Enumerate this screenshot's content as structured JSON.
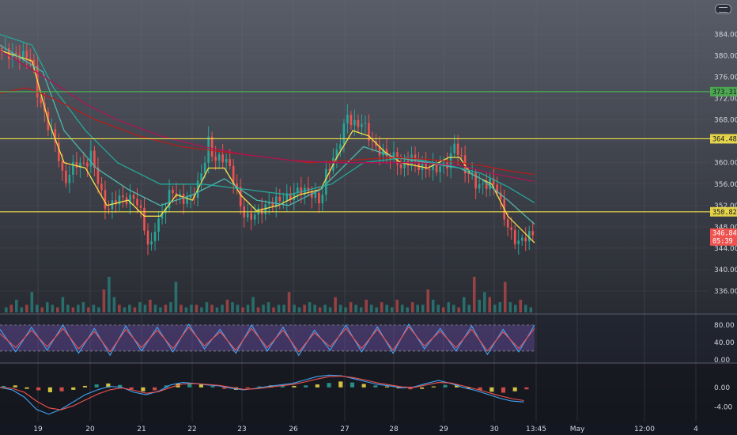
{
  "chart_data": [
    {
      "type": "candlestick",
      "panel": "price",
      "ylim": [
        332,
        386
      ],
      "y_ticks": [
        336,
        340,
        344,
        348,
        352,
        356,
        360,
        364,
        368,
        372,
        376,
        380,
        384
      ],
      "y_tick_labels": [
        "336.00",
        "340.00",
        "344.00",
        "348.00",
        "352.00",
        "356.00",
        "360.00",
        "364.00",
        "368.00",
        "372.00",
        "376.00",
        "380.00",
        "384.00"
      ],
      "x_tick_labels": [
        "19",
        "20",
        "21",
        "22",
        "23",
        "26",
        "27",
        "28",
        "29",
        "30",
        "13:45",
        "May",
        "12:00",
        "4"
      ],
      "horizontal_levels": [
        {
          "value": 373.3,
          "color": "#4caf50",
          "label": "373.31"
        },
        {
          "value": 364.48,
          "color": "#f3e148",
          "label": "364.48"
        },
        {
          "value": 350.82,
          "color": "#f3e148",
          "label": "350.82"
        }
      ],
      "current_price": {
        "value": 346.84,
        "label": "346.84",
        "countdown": "05:39",
        "color": "#ef5350"
      },
      "price_path": [
        {
          "x": 0.0,
          "y": 381.5
        },
        {
          "x": 0.02,
          "y": 380.0
        },
        {
          "x": 0.04,
          "y": 380.2
        },
        {
          "x": 0.06,
          "y": 379.5
        },
        {
          "x": 0.07,
          "y": 373.0
        },
        {
          "x": 0.09,
          "y": 367.0
        },
        {
          "x": 0.1,
          "y": 365.0
        },
        {
          "x": 0.11,
          "y": 361.0
        },
        {
          "x": 0.12,
          "y": 356.0
        },
        {
          "x": 0.14,
          "y": 360.0
        },
        {
          "x": 0.16,
          "y": 359.5
        },
        {
          "x": 0.17,
          "y": 361.5
        },
        {
          "x": 0.18,
          "y": 358.0
        },
        {
          "x": 0.19,
          "y": 354.0
        },
        {
          "x": 0.2,
          "y": 351.0
        },
        {
          "x": 0.22,
          "y": 353.5
        },
        {
          "x": 0.24,
          "y": 353.0
        },
        {
          "x": 0.25,
          "y": 353.5
        },
        {
          "x": 0.26,
          "y": 352.0
        },
        {
          "x": 0.27,
          "y": 348.0
        },
        {
          "x": 0.28,
          "y": 343.0
        },
        {
          "x": 0.29,
          "y": 348.0
        },
        {
          "x": 0.3,
          "y": 349.5
        },
        {
          "x": 0.32,
          "y": 355.0
        },
        {
          "x": 0.34,
          "y": 353.0
        },
        {
          "x": 0.36,
          "y": 353.5
        },
        {
          "x": 0.37,
          "y": 356.0
        },
        {
          "x": 0.38,
          "y": 359.0
        },
        {
          "x": 0.39,
          "y": 364.0
        },
        {
          "x": 0.4,
          "y": 360.5
        },
        {
          "x": 0.42,
          "y": 361.0
        },
        {
          "x": 0.43,
          "y": 359.0
        },
        {
          "x": 0.44,
          "y": 356.0
        },
        {
          "x": 0.45,
          "y": 352.0
        },
        {
          "x": 0.46,
          "y": 349.5
        },
        {
          "x": 0.48,
          "y": 350.5
        },
        {
          "x": 0.5,
          "y": 352.0
        },
        {
          "x": 0.52,
          "y": 353.0
        },
        {
          "x": 0.54,
          "y": 353.5
        },
        {
          "x": 0.56,
          "y": 355.0
        },
        {
          "x": 0.58,
          "y": 354.5
        },
        {
          "x": 0.6,
          "y": 352.5
        },
        {
          "x": 0.61,
          "y": 358.0
        },
        {
          "x": 0.63,
          "y": 362.0
        },
        {
          "x": 0.64,
          "y": 365.5
        },
        {
          "x": 0.65,
          "y": 369.0
        },
        {
          "x": 0.66,
          "y": 367.0
        },
        {
          "x": 0.68,
          "y": 367.5
        },
        {
          "x": 0.69,
          "y": 365.0
        },
        {
          "x": 0.7,
          "y": 363.0
        },
        {
          "x": 0.72,
          "y": 361.5
        },
        {
          "x": 0.74,
          "y": 361.0
        },
        {
          "x": 0.75,
          "y": 359.0
        },
        {
          "x": 0.77,
          "y": 361.0
        },
        {
          "x": 0.78,
          "y": 359.5
        },
        {
          "x": 0.8,
          "y": 359.0
        },
        {
          "x": 0.82,
          "y": 359.0
        },
        {
          "x": 0.84,
          "y": 360.0
        },
        {
          "x": 0.85,
          "y": 363.5
        },
        {
          "x": 0.86,
          "y": 361.5
        },
        {
          "x": 0.87,
          "y": 358.5
        },
        {
          "x": 0.88,
          "y": 358.0
        },
        {
          "x": 0.89,
          "y": 356.0
        },
        {
          "x": 0.9,
          "y": 355.5
        },
        {
          "x": 0.92,
          "y": 356.5
        },
        {
          "x": 0.93,
          "y": 355.0
        },
        {
          "x": 0.94,
          "y": 351.0
        },
        {
          "x": 0.95,
          "y": 348.0
        },
        {
          "x": 0.96,
          "y": 346.0
        },
        {
          "x": 0.97,
          "y": 345.0
        },
        {
          "x": 0.98,
          "y": 346.0
        },
        {
          "x": 1.0,
          "y": 346.8
        }
      ],
      "moving_averages": [
        {
          "color": "#f3e148",
          "path": [
            [
              0,
              381
            ],
            [
              0.06,
              379
            ],
            [
              0.09,
              368
            ],
            [
              0.12,
              360
            ],
            [
              0.16,
              359
            ],
            [
              0.2,
              352
            ],
            [
              0.24,
              353
            ],
            [
              0.27,
              350
            ],
            [
              0.3,
              350
            ],
            [
              0.33,
              354
            ],
            [
              0.36,
              353
            ],
            [
              0.39,
              359
            ],
            [
              0.42,
              359
            ],
            [
              0.45,
              354
            ],
            [
              0.48,
              351
            ],
            [
              0.52,
              352
            ],
            [
              0.56,
              354
            ],
            [
              0.6,
              355
            ],
            [
              0.63,
              361
            ],
            [
              0.66,
              366
            ],
            [
              0.69,
              365
            ],
            [
              0.72,
              362
            ],
            [
              0.75,
              360
            ],
            [
              0.8,
              359
            ],
            [
              0.84,
              361
            ],
            [
              0.86,
              361
            ],
            [
              0.88,
              358
            ],
            [
              0.92,
              356
            ],
            [
              0.95,
              350
            ],
            [
              1.0,
              345
            ]
          ]
        },
        {
          "color": "#4db6ac",
          "path": [
            [
              0,
              382
            ],
            [
              0.08,
              377
            ],
            [
              0.12,
              366
            ],
            [
              0.18,
              359
            ],
            [
              0.24,
              355
            ],
            [
              0.3,
              352
            ],
            [
              0.36,
              354
            ],
            [
              0.42,
              357
            ],
            [
              0.48,
              353
            ],
            [
              0.54,
              352
            ],
            [
              0.6,
              355
            ],
            [
              0.64,
              359
            ],
            [
              0.68,
              363
            ],
            [
              0.74,
              361
            ],
            [
              0.8,
              360
            ],
            [
              0.86,
              359
            ],
            [
              0.9,
              357
            ],
            [
              0.95,
              353
            ],
            [
              1.0,
              348.5
            ]
          ]
        },
        {
          "color": "#26a69a",
          "path": [
            [
              0,
              384
            ],
            [
              0.06,
              382
            ],
            [
              0.1,
              374
            ],
            [
              0.16,
              366
            ],
            [
              0.22,
              360
            ],
            [
              0.3,
              356
            ],
            [
              0.38,
              356
            ],
            [
              0.46,
              355
            ],
            [
              0.54,
              354
            ],
            [
              0.62,
              356
            ],
            [
              0.68,
              360
            ],
            [
              0.76,
              361
            ],
            [
              0.84,
              359.5
            ],
            [
              0.9,
              358
            ],
            [
              0.95,
              355.5
            ],
            [
              1.0,
              352.5
            ]
          ]
        },
        {
          "color": "#b71c1c",
          "path": [
            [
              0,
              373
            ],
            [
              0.05,
              374
            ],
            [
              0.1,
              372
            ],
            [
              0.18,
              368
            ],
            [
              0.26,
              365
            ],
            [
              0.34,
              363
            ],
            [
              0.42,
              362
            ],
            [
              0.5,
              361
            ],
            [
              0.58,
              360
            ],
            [
              0.66,
              360.5
            ],
            [
              0.74,
              361
            ],
            [
              0.82,
              360.5
            ],
            [
              0.9,
              359.5
            ],
            [
              0.95,
              358.5
            ],
            [
              1.0,
              357.8
            ]
          ]
        },
        {
          "color": "#ad1457",
          "path": [
            [
              0,
              381
            ],
            [
              0.05,
              378
            ],
            [
              0.1,
              375
            ],
            [
              0.16,
              371
            ],
            [
              0.22,
              368
            ],
            [
              0.3,
              365
            ],
            [
              0.38,
              363
            ],
            [
              0.46,
              361.5
            ],
            [
              0.54,
              360.5
            ],
            [
              0.62,
              360
            ],
            [
              0.7,
              360
            ],
            [
              0.78,
              360
            ],
            [
              0.86,
              359.5
            ],
            [
              0.92,
              358
            ],
            [
              1.0,
              356.5
            ]
          ]
        }
      ]
    },
    {
      "type": "line",
      "panel": "oscillator",
      "ylim": [
        -4,
        100
      ],
      "y_ticks": [
        0,
        40,
        80
      ],
      "y_tick_labels": [
        "0.00",
        "40.00",
        "80.00"
      ],
      "band": [
        20,
        80
      ],
      "series": [
        {
          "color": "#42a5f5",
          "values": [
            70,
            18,
            75,
            22,
            80,
            15,
            72,
            10,
            78,
            20,
            75,
            18,
            82,
            25,
            70,
            15,
            80,
            20,
            75,
            10,
            68,
            22,
            80,
            18,
            76,
            15,
            82,
            25,
            72,
            20,
            78,
            12,
            70,
            18,
            80
          ]
        },
        {
          "color": "#ef5350",
          "values": [
            60,
            28,
            68,
            30,
            72,
            25,
            65,
            18,
            70,
            28,
            68,
            26,
            75,
            32,
            64,
            22,
            72,
            28,
            68,
            18,
            62,
            30,
            72,
            26,
            70,
            22,
            76,
            32,
            66,
            28,
            70,
            20,
            64,
            26,
            72
          ]
        }
      ]
    },
    {
      "type": "bar",
      "panel": "macd",
      "ylim": [
        -7,
        4.5
      ],
      "y_ticks": [
        0,
        -4
      ],
      "y_tick_labels": [
        "0.00",
        "-4.00"
      ],
      "histogram": [
        0.3,
        0.4,
        -0.3,
        -0.6,
        -1.0,
        -0.8,
        -0.5,
        0.3,
        0.6,
        0.8,
        0.5,
        -0.4,
        -0.8,
        -0.6,
        0.4,
        0.8,
        0.9,
        0.6,
        0.3,
        -0.3,
        -0.5,
        -0.2,
        0.2,
        0.4,
        0.5,
        0.3,
        0.4,
        0.6,
        0.9,
        1.2,
        1.0,
        0.7,
        0.4,
        0.2,
        -0.2,
        -0.4,
        -0.3,
        0.2,
        0.5,
        0.6,
        -0.3,
        -0.6,
        -0.9,
        -1.1,
        -0.8,
        -0.4
      ],
      "series": [
        {
          "color": "#42a5f5",
          "values": [
            0,
            -0.5,
            -2,
            -4.5,
            -5.5,
            -4.5,
            -3,
            -1.5,
            -0.5,
            0.2,
            0,
            -1,
            -1.5,
            -0.8,
            0.5,
            1,
            0.8,
            0.5,
            0.3,
            -0.2,
            -0.5,
            -0.2,
            0.2,
            0.5,
            0.8,
            1.5,
            2.2,
            2.5,
            2.4,
            1.8,
            1.2,
            0.6,
            0.3,
            -0.1,
            0.1,
            0.8,
            1.4,
            0.8,
            0,
            -0.6,
            -1.4,
            -2.2,
            -2.8,
            -3
          ]
        },
        {
          "color": "#ef5350",
          "values": [
            0,
            -0.2,
            -1,
            -2.8,
            -4.2,
            -4.6,
            -3.8,
            -2.6,
            -1.4,
            -0.5,
            -0.1,
            -0.6,
            -1.2,
            -0.9,
            0,
            0.7,
            0.8,
            0.6,
            0.4,
            0,
            -0.4,
            -0.3,
            0,
            0.3,
            0.6,
            1.1,
            1.7,
            2.2,
            2.3,
            2,
            1.5,
            0.9,
            0.5,
            0.1,
            0,
            0.5,
            1,
            0.9,
            0.3,
            -0.3,
            -1,
            -1.7,
            -2.3,
            -2.7
          ]
        }
      ]
    },
    {
      "type": "bar",
      "panel": "volume",
      "values": [
        2,
        3,
        5,
        2,
        3,
        8,
        3,
        2,
        4,
        3,
        2,
        6,
        3,
        2,
        3,
        4,
        2,
        3,
        2,
        9,
        14,
        6,
        3,
        2,
        3,
        2,
        4,
        3,
        5,
        3,
        2,
        3,
        4,
        12,
        3,
        2,
        3,
        3,
        2,
        4,
        3,
        2,
        3,
        5,
        4,
        3,
        2,
        3,
        6,
        2,
        3,
        4,
        2,
        3,
        3,
        8,
        3,
        2,
        3,
        4,
        3,
        2,
        3,
        2,
        6,
        3,
        2,
        4,
        3,
        2,
        5,
        3,
        2,
        4,
        3,
        2,
        5,
        3,
        2,
        4,
        3,
        3,
        9,
        5,
        3,
        2,
        4,
        3,
        2,
        6,
        3,
        14,
        5,
        8,
        6,
        3,
        4,
        12,
        4,
        3,
        5,
        3,
        2
      ]
    }
  ],
  "toolbar": {
    "settings_icon": "chart-settings-icon"
  }
}
